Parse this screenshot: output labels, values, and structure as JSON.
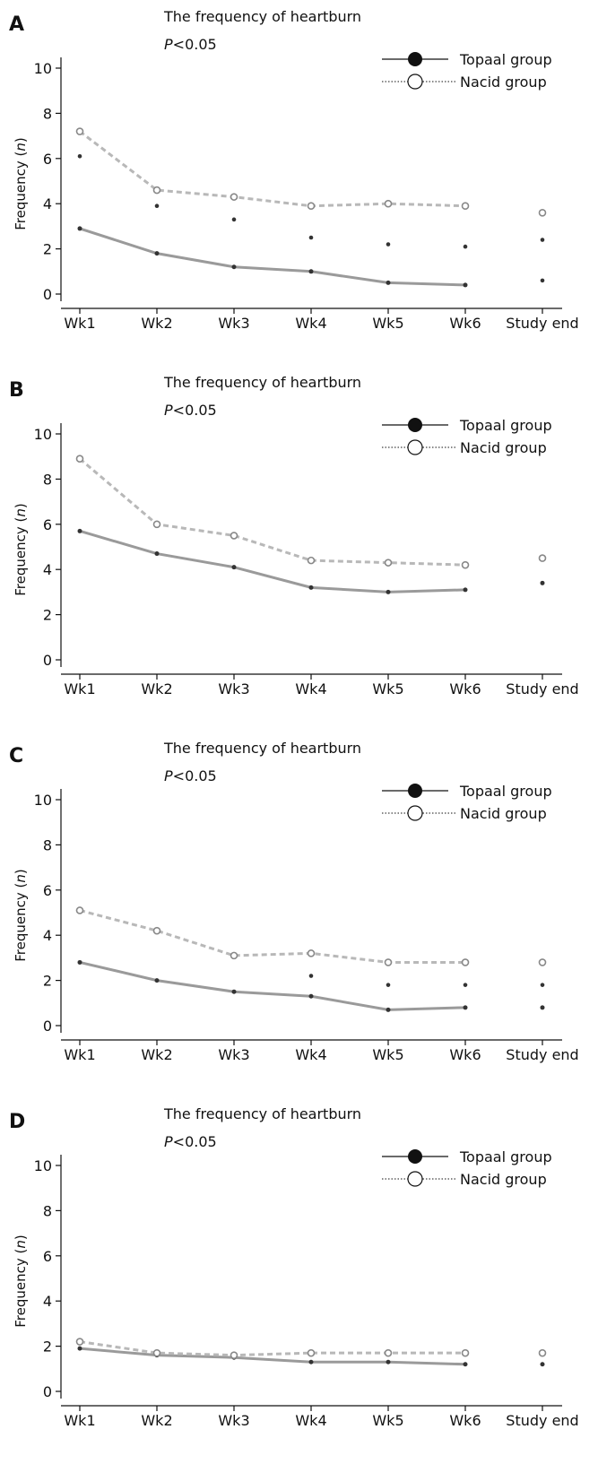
{
  "legend": {
    "series1": "Topaal group",
    "series2": "Nacid  group"
  },
  "colors": {
    "series1_line": "#9a9a9a",
    "series2_line": "#b8b8b8",
    "marker": "#333333",
    "text": "#111111"
  },
  "chart_data": [
    {
      "panel": "A",
      "type": "line",
      "title": "The frequency of heartburn",
      "pvalue_prefix": "P",
      "pvalue_suffix": "<0.05",
      "ylabel": "Frequency (n)",
      "ylim": [
        0,
        10
      ],
      "yticks": [
        0,
        2,
        4,
        6,
        8,
        10
      ],
      "categories": [
        "Wk1",
        "Wk2",
        "Wk3",
        "Wk4",
        "Wk5",
        "Wk6",
        "Study end"
      ],
      "legend_position": "top-right",
      "series": [
        {
          "name": "Topaal group",
          "values": [
            2.9,
            1.8,
            1.2,
            1.0,
            0.5,
            0.4,
            null
          ]
        },
        {
          "name": "Nacid  group",
          "values": [
            7.2,
            4.6,
            4.3,
            3.9,
            4.0,
            3.9,
            3.6
          ]
        }
      ],
      "extra_points": [
        {
          "category": "Wk1",
          "value": 6.1
        },
        {
          "category": "Wk2",
          "value": 3.9
        },
        {
          "category": "Wk3",
          "value": 3.3
        },
        {
          "category": "Wk4",
          "value": 2.5
        },
        {
          "category": "Wk5",
          "value": 2.2
        },
        {
          "category": "Wk6",
          "value": 2.1
        },
        {
          "category": "Study end",
          "value": 2.4
        },
        {
          "category": "Study end",
          "value": 0.6
        }
      ]
    },
    {
      "panel": "B",
      "type": "line",
      "title": "The frequency of heartburn",
      "pvalue_prefix": "P",
      "pvalue_suffix": "<0.05",
      "ylabel": "Frequency (n)",
      "ylim": [
        0,
        10
      ],
      "yticks": [
        0,
        2,
        4,
        6,
        8,
        10
      ],
      "categories": [
        "Wk1",
        "Wk2",
        "Wk3",
        "Wk4",
        "Wk5",
        "Wk6",
        "Study end"
      ],
      "legend_position": "top-right",
      "series": [
        {
          "name": "Topaal group",
          "values": [
            5.7,
            4.7,
            4.1,
            3.2,
            3.0,
            3.1,
            3.4
          ]
        },
        {
          "name": "Nacid  group",
          "values": [
            8.9,
            6.0,
            5.5,
            4.4,
            4.3,
            4.2,
            4.5
          ]
        }
      ],
      "extra_points": []
    },
    {
      "panel": "C",
      "type": "line",
      "title": "The frequency of heartburn",
      "pvalue_prefix": "P",
      "pvalue_suffix": "<0.05",
      "ylabel": "Frequency (n)",
      "ylim": [
        0,
        10
      ],
      "yticks": [
        0,
        2,
        4,
        6,
        8,
        10
      ],
      "categories": [
        "Wk1",
        "Wk2",
        "Wk3",
        "Wk4",
        "Wk5",
        "Wk6",
        "Study end"
      ],
      "legend_position": "top-right",
      "series": [
        {
          "name": "Topaal group",
          "values": [
            2.8,
            2.0,
            1.5,
            1.3,
            0.7,
            0.8,
            0.8
          ]
        },
        {
          "name": "Nacid  group",
          "values": [
            5.1,
            4.2,
            3.1,
            3.2,
            2.8,
            2.8,
            2.8
          ]
        }
      ],
      "extra_points": [
        {
          "category": "Wk4",
          "value": 2.2
        },
        {
          "category": "Wk5",
          "value": 1.8
        },
        {
          "category": "Wk6",
          "value": 1.8
        },
        {
          "category": "Study end",
          "value": 1.8
        }
      ]
    },
    {
      "panel": "D",
      "type": "line",
      "title": "The frequency of heartburn",
      "pvalue_prefix": "P",
      "pvalue_suffix": "<0.05",
      "ylabel": "Frequency (n)",
      "ylim": [
        0,
        10
      ],
      "yticks": [
        0,
        2,
        4,
        6,
        8,
        10
      ],
      "categories": [
        "Wk1",
        "Wk2",
        "Wk3",
        "Wk4",
        "Wk5",
        "Wk6",
        "Study end"
      ],
      "legend_position": "top-right",
      "series": [
        {
          "name": "Topaal group",
          "values": [
            1.9,
            1.6,
            1.5,
            1.3,
            1.3,
            1.2,
            1.2
          ]
        },
        {
          "name": "Nacid  group",
          "values": [
            2.2,
            1.7,
            1.6,
            1.7,
            1.7,
            1.7,
            1.7
          ]
        }
      ],
      "extra_points": []
    }
  ]
}
